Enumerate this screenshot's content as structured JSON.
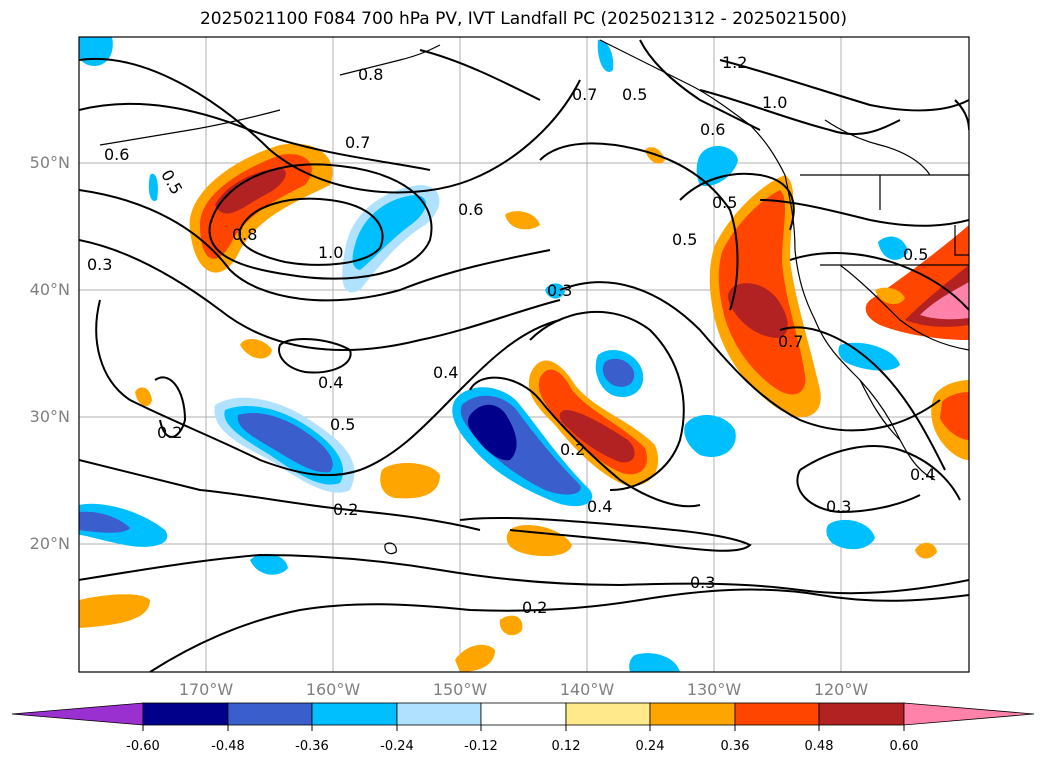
{
  "title": "2025021100 F084 700 hPa PV, IVT Landfall PC (2025021312 - 2025021500)",
  "map": {
    "lat_labels": [
      "50°N",
      "40°N",
      "30°N",
      "20°N"
    ],
    "lon_labels": [
      "170°W",
      "160°W",
      "150°W",
      "140°W",
      "130°W",
      "120°W"
    ],
    "contour_labels": [
      "0.8",
      "0.7",
      "0.5",
      "0.6",
      "1.2",
      "1.0",
      "0.5",
      "0.6",
      "0.7",
      "0.8",
      "1.0",
      "0.6",
      "0.5",
      "0.5",
      "0.3",
      "0.3",
      "0.4",
      "0.4",
      "0.5",
      "0.2",
      "0.2",
      "0.2",
      "0.4",
      "0.7",
      "0.5",
      "0.3",
      "0.3",
      "0.2",
      "0.4"
    ]
  },
  "colorbar": {
    "colors": [
      "#9b30d0",
      "#00008b",
      "#3a5fcd",
      "#00bfff",
      "#b0e2ff",
      "#ffffff",
      "#ffe98a",
      "#ffa500",
      "#ff4500",
      "#b22222",
      "#ff82ab"
    ],
    "ticks": [
      "-0.60",
      "-0.48",
      "-0.36",
      "-0.24",
      "-0.12",
      "0.12",
      "0.24",
      "0.36",
      "0.48",
      "0.60"
    ]
  }
}
